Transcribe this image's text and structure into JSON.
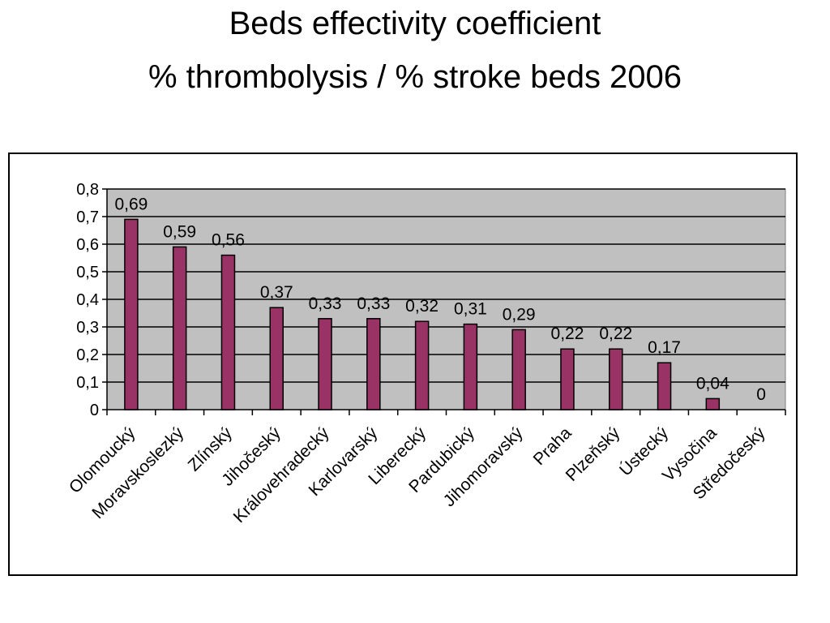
{
  "slide": {
    "title_line1": "Beds effectivity coefficient",
    "title_line2": "% thrombolysis / % stroke beds 2006"
  },
  "chart_data": {
    "type": "bar",
    "title": "",
    "xlabel": "",
    "ylabel": "",
    "ylim": [
      0,
      0.8
    ],
    "yticks": [
      "0",
      "0,1",
      "0,2",
      "0,3",
      "0,4",
      "0,5",
      "0,6",
      "0,7",
      "0,8"
    ],
    "grid": true,
    "legend": "none",
    "bar_color": "#993366",
    "plot_background": "#c0c0c0",
    "categories": [
      "Olomoucký",
      "Moravskoslezký",
      "Zlínský",
      "Jihočeský",
      "Královehradecký",
      "Karlovarský",
      "Liberecký",
      "Pardubický",
      "Jihomoravský",
      "Praha",
      "Plzeňský",
      "Ústecký",
      "Vysočina",
      "Středočeský"
    ],
    "values": [
      0.69,
      0.59,
      0.56,
      0.37,
      0.33,
      0.33,
      0.32,
      0.31,
      0.29,
      0.22,
      0.22,
      0.17,
      0.04,
      0
    ],
    "value_labels": [
      "0,69",
      "0,59",
      "0,56",
      "0,37",
      "0,33",
      "0,33",
      "0,32",
      "0,31",
      "0,29",
      "0,22",
      "0,22",
      "0,17",
      "0,04",
      "0"
    ]
  }
}
